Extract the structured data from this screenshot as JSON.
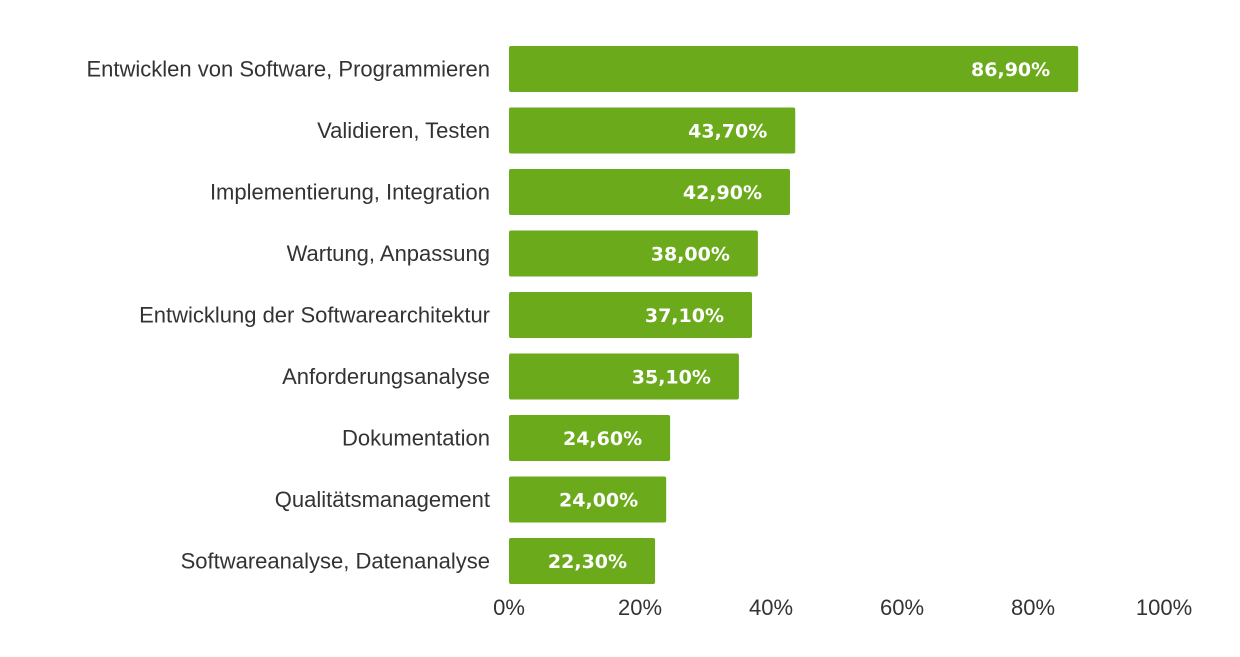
{
  "chart_data": {
    "type": "bar",
    "orientation": "horizontal",
    "title": "",
    "xlabel": "",
    "ylabel": "",
    "xlim": [
      0,
      100
    ],
    "grid": false,
    "legend": "none",
    "bar_color": "#6aaa1b",
    "categories": [
      "Entwicklen von Software, Programmieren",
      "Validieren, Testen",
      "Implementierung, Integration",
      "Wartung, Anpassung",
      "Entwicklung der Softwarearchitektur",
      "Anforderungsanalyse",
      "Dokumentation",
      "Qualitätsmanagement",
      "Softwareanalyse, Datenanalyse"
    ],
    "values": [
      86.9,
      43.7,
      42.9,
      38.0,
      37.1,
      35.1,
      24.6,
      24.0,
      22.3
    ],
    "value_labels": [
      "86,90%",
      "43,70%",
      "42,90%",
      "38,00%",
      "37,10%",
      "35,10%",
      "24,60%",
      "24,00%",
      "22,30%"
    ],
    "x_ticks": [
      0,
      20,
      40,
      60,
      80,
      100
    ],
    "x_tick_labels": [
      "0%",
      "20%",
      "40%",
      "60%",
      "80%",
      "100%"
    ]
  }
}
